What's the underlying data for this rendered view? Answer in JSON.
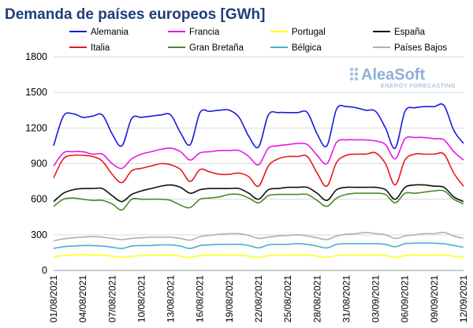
{
  "chart_data": {
    "type": "line",
    "title": "Demanda de países europeos [GWh]",
    "ylim": [
      0,
      1800
    ],
    "yticks": [
      0,
      300,
      600,
      900,
      1200,
      1500,
      1800
    ],
    "grid": "horizontal",
    "legend_position": "top",
    "x": [
      "01/08/2021",
      "02/08/2021",
      "03/08/2021",
      "04/08/2021",
      "05/08/2021",
      "06/08/2021",
      "07/08/2021",
      "08/08/2021",
      "09/08/2021",
      "10/08/2021",
      "11/08/2021",
      "12/08/2021",
      "13/08/2021",
      "14/08/2021",
      "15/08/2021",
      "16/08/2021",
      "17/08/2021",
      "18/08/2021",
      "19/08/2021",
      "20/08/2021",
      "21/08/2021",
      "22/08/2021",
      "23/08/2021",
      "24/08/2021",
      "25/08/2021",
      "26/08/2021",
      "27/08/2021",
      "28/08/2021",
      "29/08/2021",
      "30/08/2021",
      "31/08/2021",
      "01/09/2021",
      "02/09/2021",
      "03/09/2021",
      "04/09/2021",
      "05/09/2021",
      "06/09/2021",
      "07/09/2021",
      "08/09/2021",
      "09/09/2021",
      "10/09/2021",
      "11/09/2021",
      "12/09/2021"
    ],
    "xtick_labels": [
      "01/08/2021",
      "04/08/2021",
      "07/08/2021",
      "10/08/2021",
      "13/08/2021",
      "16/08/2021",
      "19/08/2021",
      "22/08/2021",
      "25/08/2021",
      "28/08/2021",
      "31/08/2021",
      "03/09/2021",
      "06/09/2021",
      "09/09/2021",
      "12/09/2021"
    ],
    "series": [
      {
        "name": "Alemania",
        "color": "#1a1adb",
        "values": [
          1050,
          1300,
          1320,
          1290,
          1300,
          1310,
          1150,
          1050,
          1280,
          1290,
          1300,
          1310,
          1310,
          1160,
          1060,
          1330,
          1340,
          1350,
          1350,
          1290,
          1130,
          1040,
          1310,
          1330,
          1330,
          1330,
          1330,
          1150,
          1050,
          1360,
          1380,
          1370,
          1350,
          1340,
          1200,
          1030,
          1340,
          1370,
          1380,
          1380,
          1390,
          1180,
          1070
        ]
      },
      {
        "name": "Francia",
        "color": "#e619e6",
        "values": [
          880,
          990,
          1000,
          1000,
          980,
          980,
          900,
          860,
          940,
          980,
          1000,
          1020,
          1030,
          1000,
          930,
          990,
          1000,
          1010,
          1010,
          1010,
          960,
          890,
          1030,
          1050,
          1060,
          1070,
          1060,
          970,
          900,
          1080,
          1100,
          1100,
          1100,
          1090,
          1060,
          940,
          1110,
          1120,
          1120,
          1110,
          1100,
          1000,
          930
        ]
      },
      {
        "name": "Portugal",
        "color": "#ffff19",
        "values": [
          115,
          125,
          130,
          135,
          130,
          130,
          120,
          110,
          120,
          125,
          130,
          130,
          130,
          120,
          110,
          125,
          130,
          130,
          130,
          130,
          120,
          110,
          125,
          130,
          130,
          130,
          130,
          120,
          110,
          125,
          130,
          130,
          130,
          130,
          125,
          110,
          125,
          130,
          130,
          130,
          130,
          120,
          110
        ]
      },
      {
        "name": "España",
        "color": "#111111",
        "values": [
          580,
          650,
          680,
          690,
          690,
          690,
          630,
          580,
          640,
          670,
          690,
          710,
          720,
          700,
          650,
          680,
          690,
          690,
          690,
          690,
          650,
          600,
          680,
          690,
          700,
          700,
          700,
          650,
          590,
          680,
          700,
          700,
          700,
          700,
          680,
          600,
          700,
          720,
          720,
          710,
          700,
          620,
          580
        ]
      },
      {
        "name": "Italia",
        "color": "#e61919",
        "values": [
          780,
          940,
          970,
          970,
          960,
          920,
          810,
          740,
          840,
          860,
          880,
          900,
          890,
          850,
          750,
          850,
          830,
          810,
          810,
          820,
          790,
          710,
          880,
          940,
          960,
          960,
          960,
          820,
          710,
          910,
          970,
          980,
          980,
          990,
          900,
          720,
          930,
          980,
          980,
          980,
          980,
          820,
          710
        ]
      },
      {
        "name": "Gran Bretaña",
        "color": "#4a8a2a",
        "values": [
          540,
          600,
          610,
          600,
          590,
          590,
          560,
          510,
          600,
          600,
          600,
          600,
          590,
          550,
          530,
          600,
          610,
          620,
          640,
          640,
          610,
          570,
          630,
          640,
          640,
          640,
          640,
          590,
          540,
          610,
          640,
          650,
          650,
          650,
          640,
          570,
          650,
          650,
          660,
          670,
          670,
          600,
          560
        ]
      },
      {
        "name": "Bélgica",
        "color": "#4ab0c8",
        "values": [
          185,
          200,
          205,
          210,
          210,
          205,
          195,
          185,
          205,
          210,
          210,
          215,
          215,
          205,
          185,
          210,
          215,
          220,
          220,
          220,
          210,
          190,
          215,
          220,
          220,
          225,
          220,
          205,
          190,
          220,
          225,
          225,
          225,
          225,
          220,
          200,
          225,
          230,
          230,
          230,
          225,
          210,
          195
        ]
      },
      {
        "name": "Países Bajos",
        "color": "#b0b0b0",
        "values": [
          250,
          265,
          275,
          280,
          285,
          280,
          270,
          260,
          270,
          275,
          280,
          280,
          280,
          270,
          255,
          285,
          295,
          305,
          310,
          310,
          295,
          270,
          280,
          290,
          295,
          300,
          290,
          275,
          260,
          290,
          305,
          310,
          320,
          310,
          300,
          270,
          290,
          300,
          310,
          310,
          320,
          290,
          270
        ]
      }
    ]
  }
}
